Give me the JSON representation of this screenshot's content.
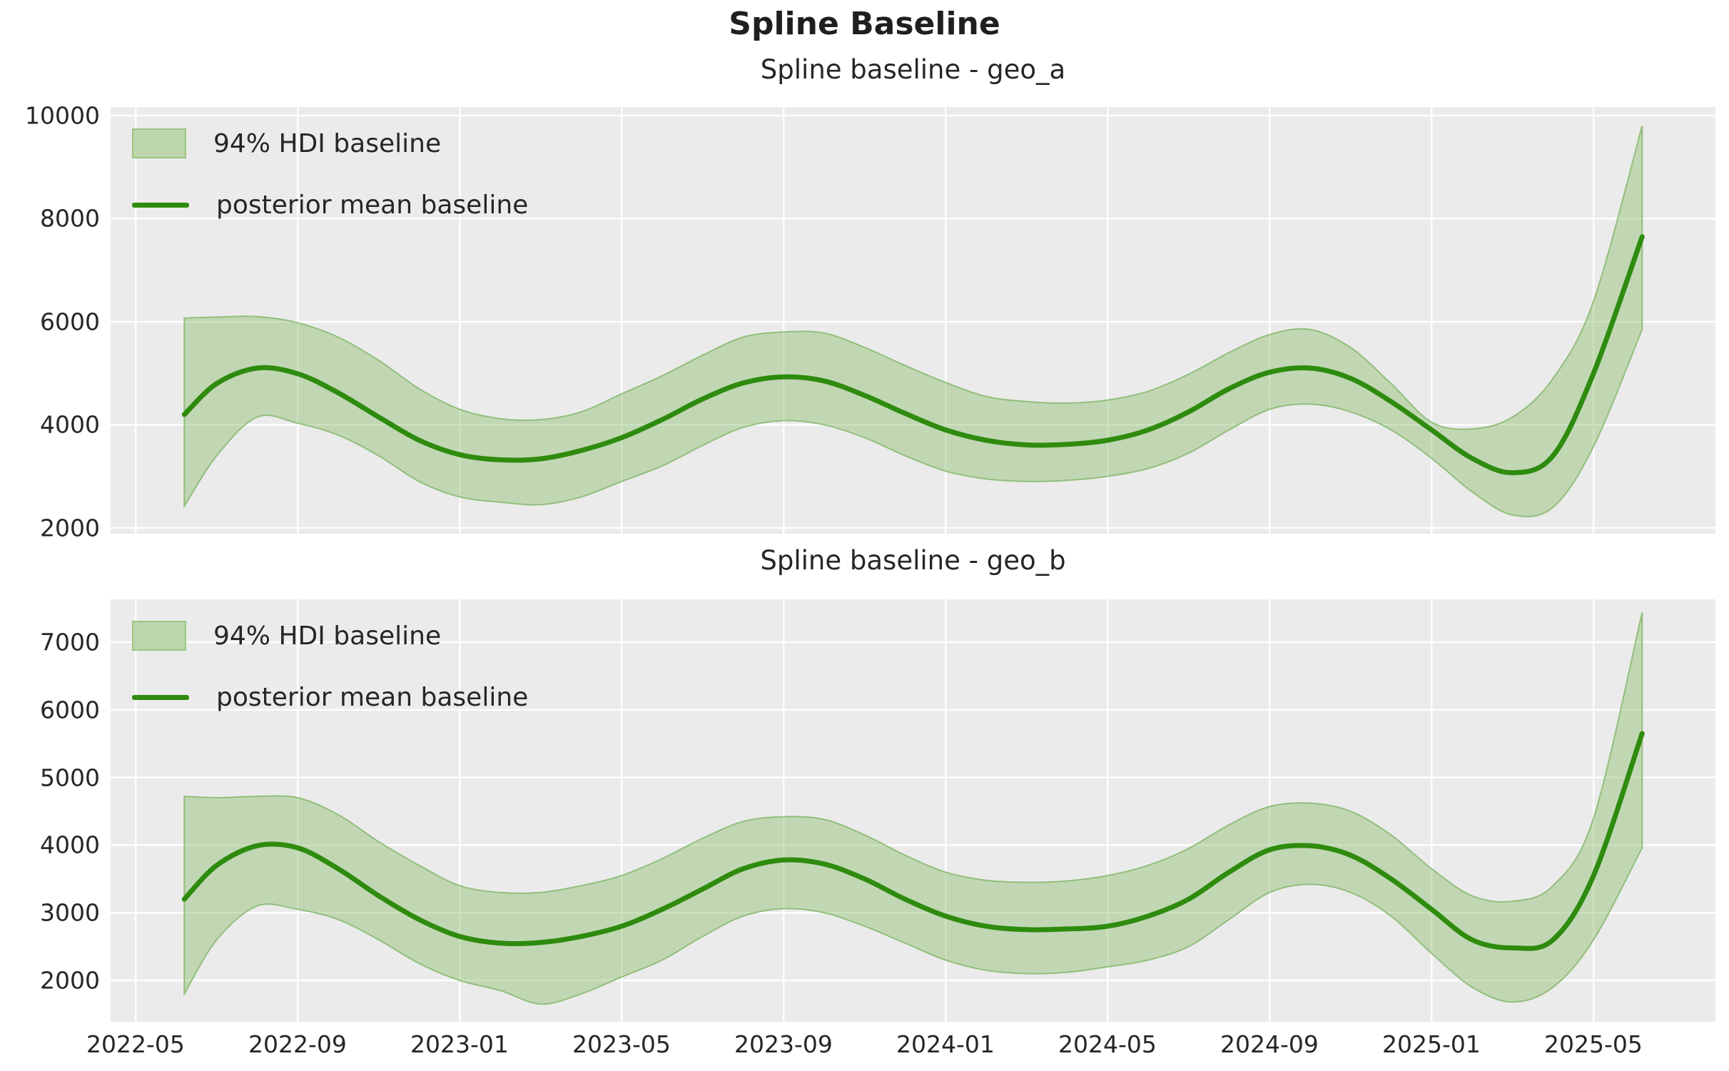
{
  "suptitle": "Spline Baseline",
  "colors": {
    "line": "#2e8b0e",
    "band_fill": "#8fbf72",
    "band_fill_opacity": 0.45,
    "band_edge": "#86b96d",
    "axes_bg": "#ebebeb",
    "grid": "#ffffff",
    "text": "#262626"
  },
  "chart_data": [
    {
      "type": "line",
      "title": "Spline baseline - geo_a",
      "x_unit": "months since 2022-05-01",
      "x": [
        1.2,
        2,
        3,
        4,
        5,
        6,
        7,
        8,
        9,
        10,
        11,
        12,
        13,
        14,
        15,
        16,
        17,
        18,
        19,
        20,
        21,
        22,
        23,
        24,
        25,
        26,
        27,
        28,
        29,
        30,
        31,
        32,
        33,
        34,
        35,
        36,
        37.2
      ],
      "x_tick_positions": [
        0,
        4,
        8,
        12,
        16,
        20,
        24,
        28,
        32,
        36
      ],
      "x_tick_labels": [
        "2022-05",
        "2022-09",
        "2023-01",
        "2023-05",
        "2023-09",
        "2024-01",
        "2024-05",
        "2024-09",
        "2025-01",
        "2025-05"
      ],
      "show_x_tick_labels": false,
      "yticks": [
        2000,
        4000,
        6000,
        8000,
        10000
      ],
      "ylim": [
        1886,
        10166
      ],
      "xlim": [
        -0.62,
        39.01
      ],
      "grid": true,
      "legend_position": "upper left",
      "legend": [
        "94% HDI baseline",
        "posterior mean baseline"
      ],
      "series": [
        {
          "name": "94% HDI baseline",
          "type": "band",
          "hi": [
            6070,
            6090,
            6100,
            5980,
            5700,
            5250,
            4700,
            4300,
            4120,
            4100,
            4250,
            4600,
            4950,
            5350,
            5700,
            5800,
            5780,
            5500,
            5150,
            4820,
            4550,
            4450,
            4420,
            4480,
            4650,
            4980,
            5400,
            5750,
            5850,
            5500,
            4800,
            4050,
            3920,
            4150,
            4900,
            6400,
            9800
          ],
          "lo": [
            2420,
            3400,
            4150,
            4030,
            3800,
            3400,
            2900,
            2600,
            2500,
            2450,
            2600,
            2900,
            3200,
            3600,
            3950,
            4080,
            4000,
            3750,
            3400,
            3100,
            2950,
            2900,
            2920,
            3000,
            3150,
            3450,
            3900,
            4300,
            4400,
            4250,
            3900,
            3350,
            2700,
            2250,
            2400,
            3580,
            5850
          ]
        },
        {
          "name": "posterior mean baseline",
          "type": "line",
          "values": [
            4200,
            4800,
            5100,
            4990,
            4620,
            4150,
            3700,
            3420,
            3320,
            3340,
            3500,
            3750,
            4100,
            4500,
            4810,
            4930,
            4850,
            4570,
            4220,
            3900,
            3700,
            3610,
            3620,
            3700,
            3900,
            4250,
            4700,
            5020,
            5100,
            4900,
            4450,
            3900,
            3350,
            3070,
            3400,
            5000,
            7650
          ]
        }
      ]
    },
    {
      "type": "line",
      "title": "Spline baseline - geo_b",
      "x_unit": "months since 2022-05-01",
      "x": [
        1.2,
        2,
        3,
        4,
        5,
        6,
        7,
        8,
        9,
        10,
        11,
        12,
        13,
        14,
        15,
        16,
        17,
        18,
        19,
        20,
        21,
        22,
        23,
        24,
        25,
        26,
        27,
        28,
        29,
        30,
        31,
        32,
        33,
        34,
        35,
        36,
        37.2
      ],
      "x_tick_positions": [
        0,
        4,
        8,
        12,
        16,
        20,
        24,
        28,
        32,
        36
      ],
      "x_tick_labels": [
        "2022-05",
        "2022-09",
        "2023-01",
        "2023-05",
        "2023-09",
        "2024-01",
        "2024-05",
        "2024-09",
        "2025-01",
        "2025-05"
      ],
      "show_x_tick_labels": true,
      "yticks": [
        2000,
        3000,
        4000,
        5000,
        6000,
        7000
      ],
      "ylim": [
        1388,
        7633
      ],
      "xlim": [
        -0.62,
        39.01
      ],
      "grid": true,
      "legend_position": "upper left",
      "legend": [
        "94% HDI baseline",
        "posterior mean baseline"
      ],
      "series": [
        {
          "name": "94% HDI baseline",
          "type": "band",
          "hi": [
            4720,
            4700,
            4720,
            4700,
            4450,
            4050,
            3700,
            3400,
            3300,
            3300,
            3400,
            3550,
            3800,
            4100,
            4350,
            4420,
            4380,
            4150,
            3850,
            3600,
            3480,
            3450,
            3470,
            3550,
            3700,
            3950,
            4300,
            4570,
            4620,
            4500,
            4150,
            3650,
            3250,
            3170,
            3400,
            4400,
            7440
          ],
          "lo": [
            1800,
            2600,
            3100,
            3050,
            2900,
            2600,
            2250,
            2000,
            1850,
            1650,
            1800,
            2050,
            2300,
            2650,
            2950,
            3060,
            3000,
            2800,
            2550,
            2300,
            2150,
            2100,
            2120,
            2200,
            2300,
            2500,
            2900,
            3300,
            3420,
            3300,
            2950,
            2400,
            1900,
            1680,
            1900,
            2600,
            3960
          ]
        },
        {
          "name": "posterior mean baseline",
          "type": "line",
          "values": [
            3200,
            3700,
            3990,
            3960,
            3650,
            3250,
            2900,
            2650,
            2550,
            2560,
            2650,
            2800,
            3050,
            3350,
            3650,
            3780,
            3720,
            3500,
            3200,
            2950,
            2800,
            2750,
            2760,
            2800,
            2950,
            3200,
            3600,
            3930,
            3990,
            3850,
            3500,
            3050,
            2600,
            2480,
            2600,
            3550,
            5650
          ]
        }
      ]
    }
  ]
}
